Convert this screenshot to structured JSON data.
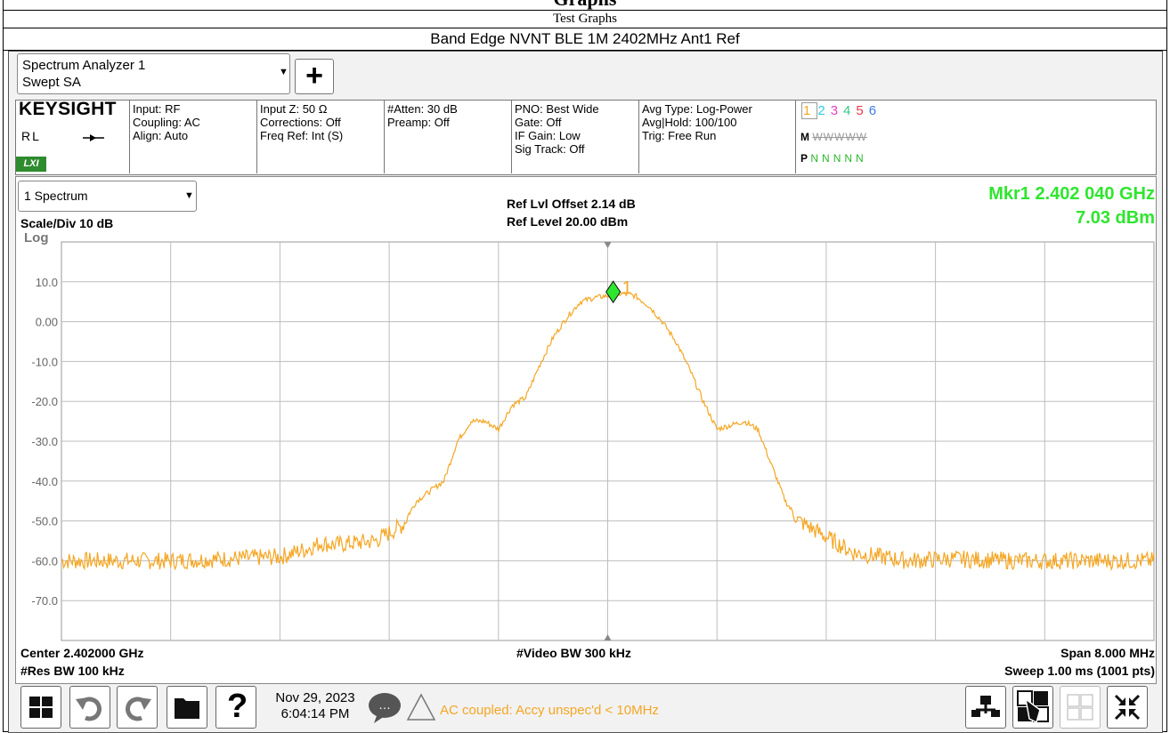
{
  "header": {
    "partial_title": "Graphs",
    "section": "Test Graphs",
    "test_name": "Band Edge NVNT BLE 1M 2402MHz Ant1 Ref"
  },
  "analyzer": {
    "app_line1": "Spectrum Analyzer 1",
    "app_line2": "Swept SA",
    "add_label": "+",
    "brand": "KEYSIGHT",
    "rl": "RL",
    "lxi": "LXI",
    "cells": [
      [
        "Input: RF",
        "Coupling: AC",
        "Align: Auto"
      ],
      [
        "Input Z: 50 Ω",
        "Corrections: Off",
        "Freq Ref: Int (S)"
      ],
      [
        "#Atten: 30 dB",
        "Preamp: Off"
      ],
      [
        "PNO: Best Wide",
        "Gate: Off",
        "IF Gain: Low",
        "Sig Track: Off"
      ],
      [
        "Avg Type: Log-Power",
        "Avg|Hold: 100/100",
        "Trig: Free Run"
      ]
    ],
    "traces": {
      "numbers": [
        "1",
        "2",
        "3",
        "4",
        "5",
        "6"
      ],
      "number_colors": [
        "#f5a623",
        "#2ecbe8",
        "#e040c8",
        "#37c98a",
        "#e8384f",
        "#3b7de8"
      ],
      "m_label": "M",
      "m_row": [
        "W",
        "W",
        "W",
        "W",
        "W"
      ],
      "p_label": "P",
      "p_row": [
        "N",
        "N",
        "N",
        "N",
        "N"
      ]
    }
  },
  "plot": {
    "window_select": "1 Spectrum",
    "scale": "Scale/Div 10 dB",
    "log": "Log",
    "ref_offset": "Ref Lvl Offset 2.14 dB",
    "ref_level": "Ref Level 20.00 dBm",
    "marker_freq": "Mkr1  2.402 040 GHz",
    "marker_amp": "7.03 dBm",
    "center": "Center 2.402000 GHz",
    "res_bw": "#Res BW 100 kHz",
    "video_bw": "#Video BW 300 kHz",
    "span": "Span 8.000 MHz",
    "sweep": "Sweep 1.00 ms (1001 pts)"
  },
  "chart_data": {
    "type": "line",
    "title": "",
    "xlabel": "",
    "ylabel": "",
    "x_unit": "GHz",
    "xlim": [
      2.398,
      2.406
    ],
    "ylim": [
      -80,
      20
    ],
    "y_ticks": [
      10,
      0,
      -10,
      -20,
      -30,
      -40,
      -50,
      -60,
      -70
    ],
    "y_tick_labels": [
      "10.0",
      "0.00",
      "-10.0",
      "-20.0",
      "-30.0",
      "-40.0",
      "-50.0",
      "-60.0",
      "-70.0"
    ],
    "grid": true,
    "trace_color": "#f5a623",
    "series": [
      {
        "x": [
          2.398,
          2.3984,
          2.3988,
          2.3992,
          2.3996,
          2.3998,
          2.3999,
          2.4,
          2.4003,
          2.4005,
          2.4006,
          2.4008,
          2.4009,
          2.401,
          2.4011,
          2.4012,
          2.4013,
          2.4014,
          2.4015,
          2.4016,
          2.4017,
          2.4018,
          2.4019,
          2.402,
          2.4021,
          2.4022,
          2.4023,
          2.4024,
          2.4025,
          2.4026,
          2.4027,
          2.4028,
          2.4029,
          2.403,
          2.4031,
          2.4032,
          2.4033,
          2.4034,
          2.4035,
          2.4036,
          2.4037,
          2.4038,
          2.404,
          2.4042,
          2.4045,
          2.405,
          2.4055,
          2.406
        ],
        "y": [
          -60,
          -60,
          -60,
          -59.5,
          -59,
          -57,
          -55.5,
          -56,
          -55,
          -51,
          -45,
          -40,
          -30,
          -25,
          -25,
          -27,
          -21,
          -19,
          -11,
          -4,
          1,
          5,
          6,
          6.5,
          7.03,
          6.5,
          4,
          0,
          -5,
          -12,
          -20,
          -27,
          -26,
          -25,
          -27,
          -36,
          -45,
          -50,
          -52,
          -54,
          -56,
          -58,
          -59,
          -60,
          -59.5,
          -60,
          -60,
          -60
        ]
      }
    ],
    "marker": {
      "label": "1",
      "x": 2.40204,
      "y": 7.03
    }
  },
  "toolbar": {
    "date": "Nov 29, 2023",
    "time": "6:04:14 PM",
    "chat_icon_text": "…",
    "message": "AC coupled: Accy unspec'd < 10MHz"
  },
  "colors": {
    "trace": "#f5a623",
    "marker": "#2ee62e",
    "grid": "#bdbdbd"
  }
}
